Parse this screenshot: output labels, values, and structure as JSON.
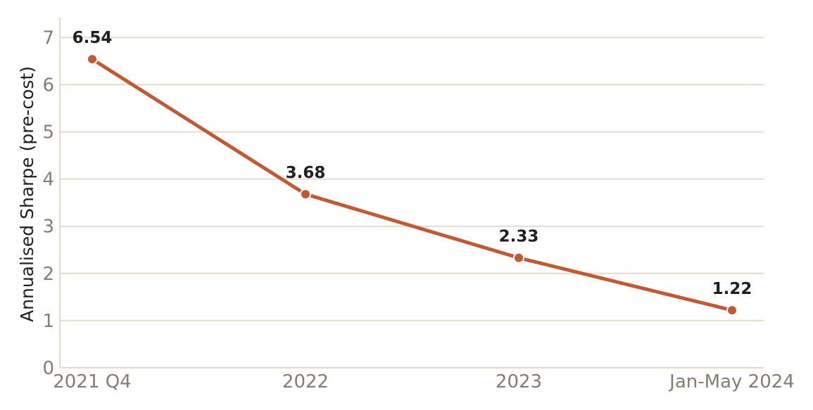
{
  "chart_data": {
    "type": "line",
    "categories": [
      "2021 Q4",
      "2022",
      "2023",
      "Jan-May 2024"
    ],
    "series": [
      {
        "values": [
          6.54,
          3.68,
          2.33,
          1.22
        ],
        "color": "#bf5a36"
      }
    ],
    "data_labels": [
      "6.54",
      "3.68",
      "2.33",
      "1.22"
    ],
    "ylabel": "Annualised Sharpe (pre-cost)",
    "ylim": [
      0,
      7.4
    ],
    "yticks": [
      0,
      1,
      2,
      3,
      4,
      5,
      6,
      7
    ],
    "grid": true,
    "legend": "none"
  }
}
